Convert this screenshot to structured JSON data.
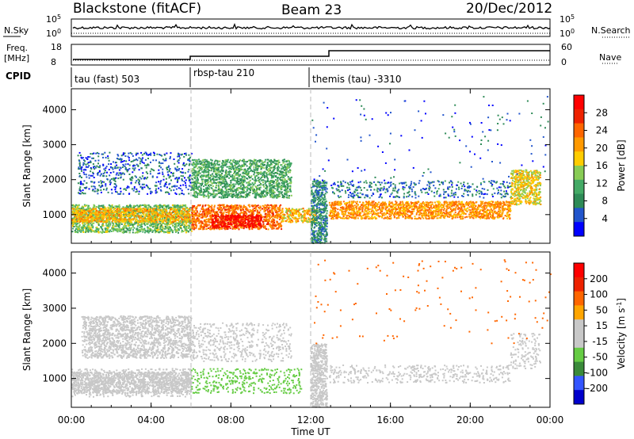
{
  "header": {
    "station": "Blackstone (fitACF)",
    "beam": "Beam 23",
    "date": "20/Dec/2012"
  },
  "side_labels": {
    "nsky": "N.Sky",
    "nsearch": "N.Search",
    "freq_line1": "Freq.",
    "freq_line2": "[MHz]",
    "nave": "Nave",
    "cpid": "CPID"
  },
  "noise_panel": {
    "left_ticks": [
      "10^5",
      "10^0"
    ],
    "right_ticks": [
      "10^5",
      "10^0"
    ]
  },
  "freq_panel": {
    "left_ticks": [
      "18",
      "8"
    ],
    "right_ticks": [
      "60",
      "0"
    ]
  },
  "cpid_labels": [
    "tau (fast) 503",
    "rbsp-tau 210",
    "themis (tau) -3310"
  ],
  "colors": {
    "power_scale": [
      "#0000ff",
      "#2255cc",
      "#2e8b57",
      "#44aa66",
      "#88cc55",
      "#ffcc00",
      "#ff9900",
      "#ff6600",
      "#ee2200",
      "#ff0000"
    ],
    "velocity_scale": [
      "#0000cc",
      "#3355ff",
      "#3a8a3a",
      "#66cc44",
      "#c8c8c8",
      "#c8c8c8",
      "#ffa500",
      "#ff6600",
      "#ee2200",
      "#ff0000"
    ]
  },
  "chart_data": [
    {
      "type": "heatmap",
      "xlabel": "Time UT",
      "ylabel": "Slant Range [km]",
      "x_ticks": [
        "00:00",
        "04:00",
        "08:00",
        "12:00",
        "16:00",
        "20:00",
        "00:00"
      ],
      "y_ticks": [
        1000,
        2000,
        3000,
        4000
      ],
      "xlim": [
        0,
        24
      ],
      "ylim": [
        180,
        4600
      ],
      "colorbar": {
        "label": "Power [dB]",
        "ticks": [
          "28",
          "24",
          "20",
          "16",
          "12",
          "8",
          "4"
        ],
        "range": [
          0,
          30
        ]
      },
      "scatter_bands": [
        {
          "t": [
            0.0,
            6.0
          ],
          "r": [
            500,
            1300
          ],
          "value": 12
        },
        {
          "t": [
            0.0,
            6.0
          ],
          "r": [
            800,
            1200
          ],
          "value": 18
        },
        {
          "t": [
            0.3,
            6.0
          ],
          "r": [
            1600,
            2800
          ],
          "value": 5
        },
        {
          "t": [
            6.0,
            10.5
          ],
          "r": [
            600,
            1300
          ],
          "value": 22
        },
        {
          "t": [
            7.0,
            9.5
          ],
          "r": [
            650,
            1000
          ],
          "value": 28
        },
        {
          "t": [
            6.0,
            11.0
          ],
          "r": [
            1500,
            2600
          ],
          "value": 10
        },
        {
          "t": [
            10.5,
            12.3
          ],
          "r": [
            800,
            1200
          ],
          "value": 18
        },
        {
          "t": [
            12.0,
            12.8
          ],
          "r": [
            200,
            2000
          ],
          "value": 8
        },
        {
          "t": [
            12.9,
            22.0
          ],
          "r": [
            900,
            1400
          ],
          "value": 20
        },
        {
          "t": [
            13.0,
            22.0
          ],
          "r": [
            1500,
            2000
          ],
          "value": 6
        },
        {
          "t": [
            22.0,
            23.5
          ],
          "r": [
            1300,
            2300
          ],
          "value": 16
        },
        {
          "t": [
            12.0,
            24.0
          ],
          "r": [
            2000,
            4400
          ],
          "value": 4
        }
      ]
    },
    {
      "type": "heatmap",
      "xlabel": "Time UT",
      "ylabel": "Slant Range [km]",
      "x_ticks": [
        "00:00",
        "04:00",
        "08:00",
        "12:00",
        "16:00",
        "20:00",
        "00:00"
      ],
      "y_ticks": [
        1000,
        2000,
        3000,
        4000
      ],
      "xlim": [
        0,
        24
      ],
      "ylim": [
        180,
        4600
      ],
      "colorbar": {
        "label": "Velocity [m s^-1]",
        "ticks": [
          "200",
          "100",
          "50",
          "15",
          "-15",
          "-50",
          "-100",
          "-200"
        ],
        "range": [
          -250,
          250
        ]
      },
      "scatter_bands": [
        {
          "t": [
            0.0,
            6.0
          ],
          "r": [
            500,
            1300
          ],
          "value": 0
        },
        {
          "t": [
            0.0,
            6.0
          ],
          "r": [
            600,
            1200
          ],
          "value": 40
        },
        {
          "t": [
            0.5,
            6.0
          ],
          "r": [
            1600,
            2800
          ],
          "value": 20
        },
        {
          "t": [
            6.0,
            11.5
          ],
          "r": [
            600,
            1300
          ],
          "value": -60
        },
        {
          "t": [
            6.0,
            11.0
          ],
          "r": [
            1500,
            2600
          ],
          "value": 0
        },
        {
          "t": [
            12.0,
            12.8
          ],
          "r": [
            200,
            2000
          ],
          "value": 30
        },
        {
          "t": [
            12.9,
            22.0
          ],
          "r": [
            900,
            1400
          ],
          "value": 0
        },
        {
          "t": [
            22.0,
            23.5
          ],
          "r": [
            1300,
            2300
          ],
          "value": 0
        },
        {
          "t": [
            12.0,
            24.0
          ],
          "r": [
            2000,
            4400
          ],
          "value": 120
        }
      ]
    }
  ]
}
